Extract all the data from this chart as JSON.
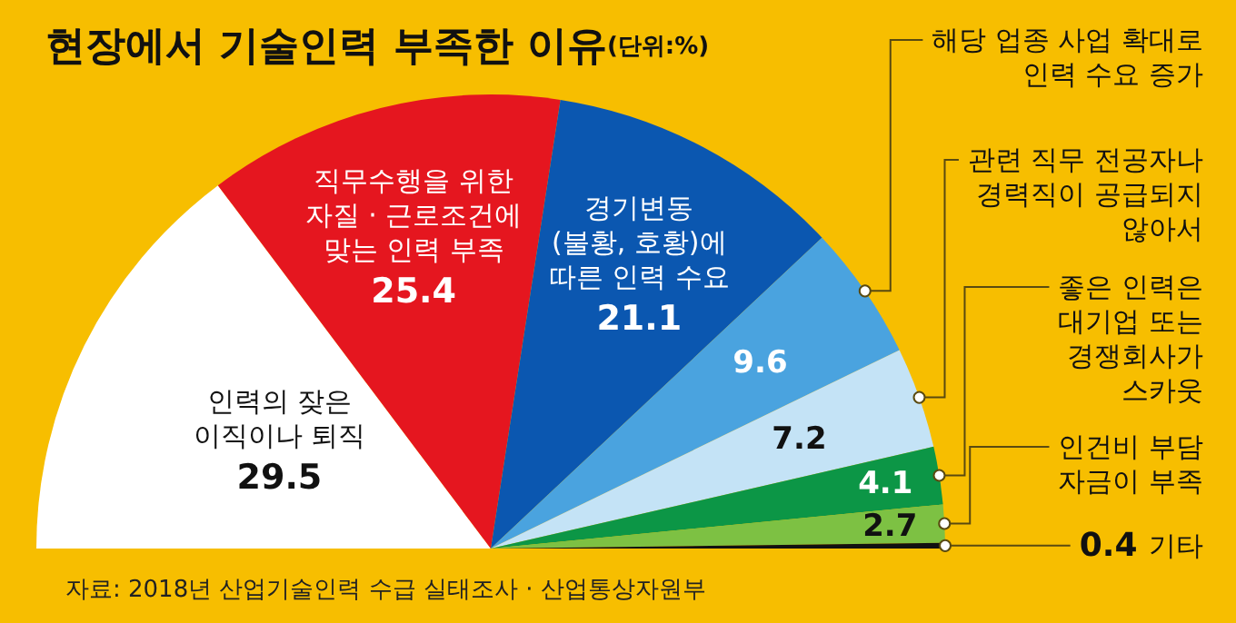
{
  "chart_data": {
    "type": "pie",
    "title": "현장에서 기술인력 부족한 이유",
    "subtitle": "(단위:%)",
    "categories": [
      "인력의 잦은\n이직이나 퇴직",
      "직무수행을 위한\n자질 · 근로조건에\n맞는 인력 부족",
      "경기변동\n(불황, 호황)에\n따른 인력 수요",
      "해당 업종 사업 확대로\n인력 수요 증가",
      "관련 직무 전공자나\n경력직이 공급되지\n않아서",
      "좋은 인력은\n대기업 또는\n경쟁회사가\n스카웃",
      "인건비 부담\n자금이 부족",
      "기타"
    ],
    "values": [
      29.5,
      25.4,
      21.1,
      9.6,
      7.2,
      4.1,
      2.7,
      0.4
    ],
    "colors": [
      "#ffffff",
      "#e5161f",
      "#0b57b0",
      "#4aa3df",
      "#c4e3f6",
      "#0c9646",
      "#7dc143",
      "#111111"
    ],
    "data_labels": true,
    "annotations": [
      "자료: 2018년 산업기술인력 수급 실태조사 · 산업통상자원부"
    ]
  }
}
